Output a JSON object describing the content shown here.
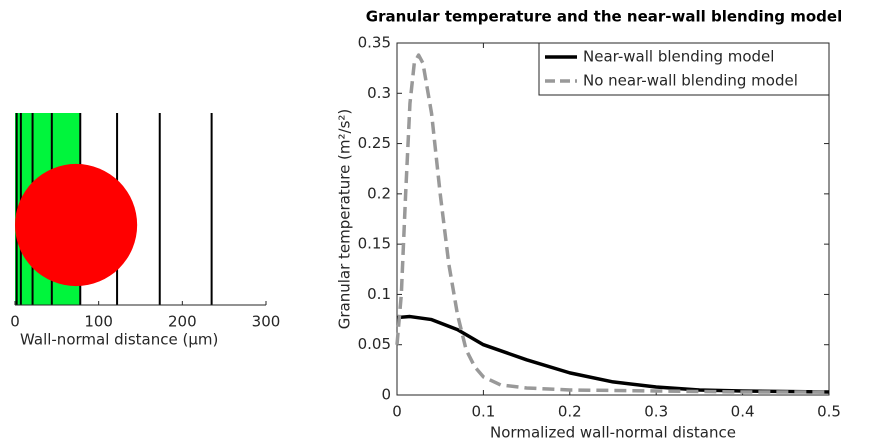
{
  "chart_data": [
    {
      "type": "particle-wall",
      "xlabel": "Wall-normal distance (μm)",
      "xlim": [
        0,
        300
      ],
      "xticks": [
        0,
        100,
        200,
        300
      ],
      "band": [
        0,
        78
      ],
      "band_color": "#00f53c",
      "lines_x": [
        2,
        7,
        21,
        44,
        78,
        122,
        173,
        235
      ],
      "line_color": "#000000",
      "circle": {
        "x": 73,
        "r": 73
      },
      "circle_color": "#ff0000"
    },
    {
      "type": "line",
      "title": "Granular temperature and the near-wall blending model",
      "xlabel": "Normalized wall-normal distance",
      "ylabel": "Granular temperature (m²/s²)",
      "xlim": [
        0,
        0.5
      ],
      "xticks": [
        0,
        0.1,
        0.2,
        0.3,
        0.4,
        0.5
      ],
      "ylim": [
        0,
        0.35
      ],
      "yticks": [
        0,
        0.05,
        0.1,
        0.15,
        0.2,
        0.25,
        0.3,
        0.35
      ],
      "legend": "upper right",
      "series": [
        {
          "name": "Near-wall blending model",
          "color": "#000000",
          "dashed": false,
          "x": [
            0,
            0.015,
            0.04,
            0.07,
            0.1,
            0.15,
            0.2,
            0.25,
            0.3,
            0.35,
            0.4,
            0.45,
            0.5
          ],
          "values": [
            0.077,
            0.078,
            0.075,
            0.065,
            0.05,
            0.035,
            0.022,
            0.013,
            0.008,
            0.005,
            0.004,
            0.0035,
            0.003
          ]
        },
        {
          "name": "No near-wall blending model",
          "color": "#999999",
          "dashed": true,
          "x": [
            0,
            0.005,
            0.01,
            0.015,
            0.02,
            0.025,
            0.03,
            0.04,
            0.05,
            0.06,
            0.07,
            0.08,
            0.09,
            0.1,
            0.12,
            0.15,
            0.2,
            0.3,
            0.4,
            0.5
          ],
          "values": [
            0.05,
            0.1,
            0.2,
            0.29,
            0.33,
            0.338,
            0.33,
            0.28,
            0.2,
            0.13,
            0.08,
            0.045,
            0.028,
            0.018,
            0.01,
            0.007,
            0.005,
            0.004,
            0.003,
            0.003
          ]
        }
      ]
    }
  ]
}
